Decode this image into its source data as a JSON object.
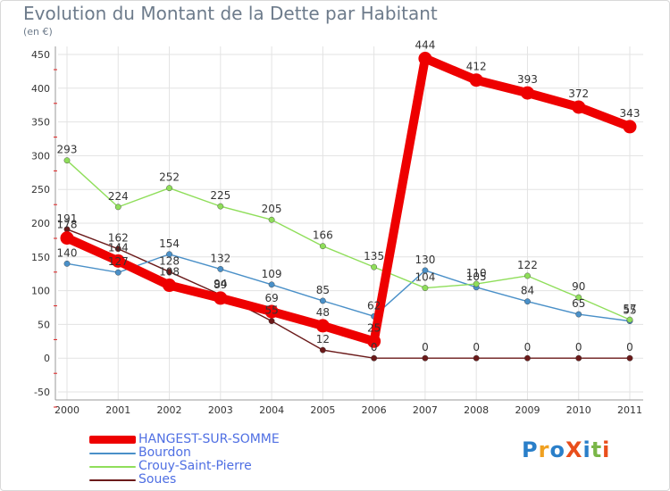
{
  "title": "Evolution du Montant de la Dette par Habitant",
  "unit_label": "(en €)",
  "logo": {
    "text": "ProXiti",
    "colors": [
      "#2a7fc9",
      "#f0a020",
      "#2a7fc9",
      "#e94e1b",
      "#2a7fc9",
      "#7ab648",
      "#e94e1b"
    ]
  },
  "chart_data": {
    "type": "line",
    "x": [
      "2000",
      "2001",
      "2002",
      "2003",
      "2004",
      "2005",
      "2006",
      "2007",
      "2008",
      "2009",
      "2010",
      "2011"
    ],
    "ylim": [
      -50,
      450
    ],
    "yticks": [
      "450",
      "400",
      "350",
      "300",
      "250",
      "200",
      "150",
      "100",
      "50",
      "0",
      "-50"
    ],
    "ytick_values": [
      450,
      400,
      350,
      300,
      250,
      200,
      150,
      100,
      50,
      0,
      -50
    ],
    "grid": true,
    "legend_position": "bottom-left",
    "series": [
      {
        "name": "Soues",
        "color": "#6b1a1a",
        "values": [
          191,
          162,
          128,
          94,
          55,
          12,
          0,
          0,
          0,
          0,
          0,
          0
        ],
        "labels": [
          "191",
          "162",
          "128",
          "94",
          "55",
          "12",
          "0",
          "0",
          "0",
          "0",
          "0",
          "0"
        ]
      },
      {
        "name": "Bourdon",
        "color": "#4a90c8",
        "values": [
          140,
          127,
          154,
          132,
          109,
          85,
          62,
          130,
          105,
          84,
          65,
          55
        ],
        "labels": [
          "140",
          "127",
          "154",
          "132",
          "109",
          "85",
          "62",
          "130",
          "105",
          "84",
          "65",
          "55"
        ]
      },
      {
        "name": "Crouy-Saint-Pierre",
        "color": "#8fde5a",
        "values": [
          293,
          224,
          252,
          225,
          205,
          166,
          135,
          104,
          110,
          122,
          90,
          57
        ],
        "labels": [
          "293",
          "224",
          "252",
          "225",
          "205",
          "166",
          "135",
          "104",
          "110",
          "122",
          "90",
          "57"
        ]
      },
      {
        "name": "HANGEST-SUR-SOMME",
        "color": "#ee0000",
        "values": [
          178,
          144,
          108,
          89,
          69,
          48,
          25,
          444,
          412,
          393,
          372,
          343
        ],
        "labels": [
          "178",
          "144",
          "108",
          "89",
          "69",
          "48",
          "25",
          "444",
          "412",
          "393",
          "372",
          "343"
        ]
      }
    ],
    "legend": [
      "HANGEST-SUR-SOMME",
      "Bourdon",
      "Crouy-Saint-Pierre",
      "Soues"
    ]
  }
}
